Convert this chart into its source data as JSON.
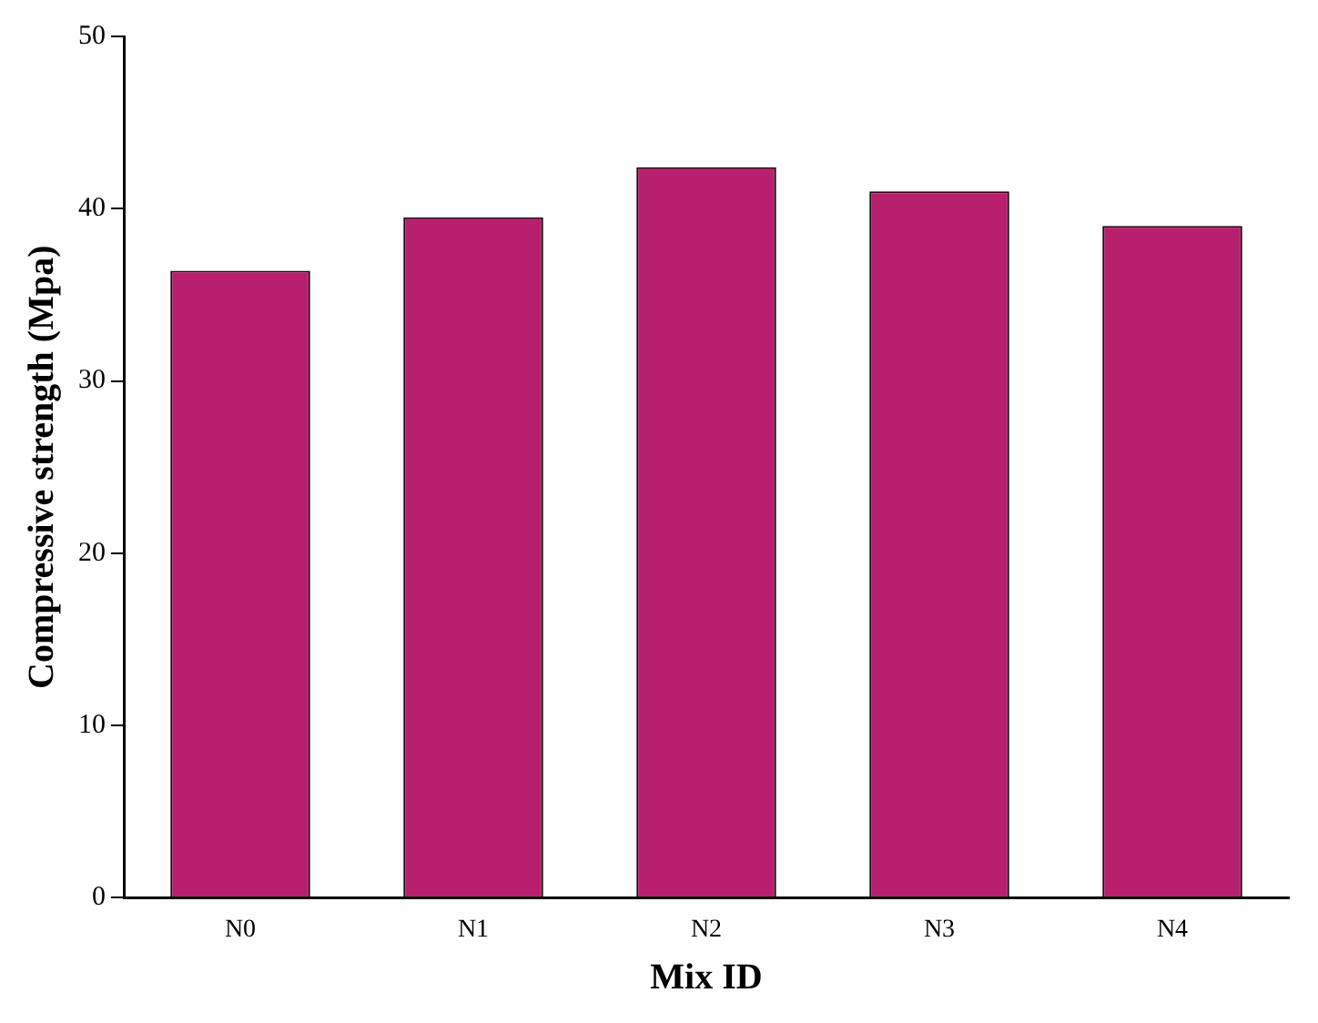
{
  "chart_data": {
    "type": "bar",
    "xlabel": "Mix ID",
    "ylabel": "Compressive strength (Mpa)",
    "categories": [
      "N0",
      "N1",
      "N2",
      "N3",
      "N4"
    ],
    "series": [
      {
        "color": "#b8206e",
        "values": [
          36.4,
          39.5,
          42.4,
          41.0,
          39.0
        ]
      }
    ],
    "ylim": [
      0,
      50
    ],
    "yticks": [
      0,
      10,
      20,
      30,
      40,
      50
    ],
    "grid": false,
    "legend": false
  }
}
